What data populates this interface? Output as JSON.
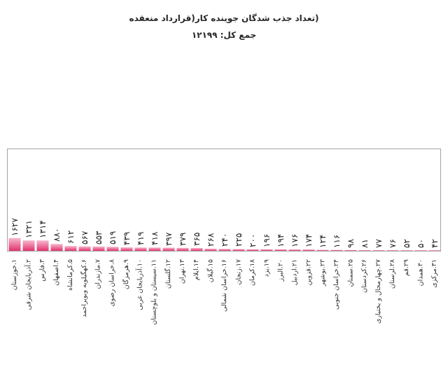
{
  "chart_data": {
    "type": "bar",
    "title": "(تعداد جذب شدگان جوینده کار(قرارداد منعقده",
    "subtitle": "جمع کل: ۱۲۱۹۹",
    "xlabel": "",
    "ylabel": "",
    "categories": [
      "۱.خوزستان",
      "۲.آذربایجان شرقی",
      "۳.فارس",
      "۴.اصفهان",
      "۵.کرمانشاه",
      "۶.کهگیلویه وبویراحمد",
      "۷.مازندران",
      "۸.خراسان رضوی",
      "۹.هرمزگان",
      "۱۰.آذربایجان غربی",
      "۱۱.سیستان و بلوچستان",
      "۱۲.گلستان",
      "۱۳.تهران",
      "۱۴.ایلام",
      "۱۵.گیلان",
      "۱۶.خراسان شمالی",
      "۱۷.زنجان",
      "۱۸.کرمان",
      "۱۹.یزد",
      "۲۰.البرز",
      "۲۱.اردبیل",
      "۲۲.قزوین",
      "۲۳.بوشهر",
      "۲۴.خراسان جنوبی",
      "۲۵.سمنان",
      "۲۶.کردستان",
      "۲۷.چهارمحال و بختیاری",
      "۲۸.لرستان",
      "۲۹.قم",
      "۳۰.همدان",
      "۳۱.مرکزی"
    ],
    "values": [
      1627,
      1321,
      1314,
      880,
      612,
      567,
      553,
      519,
      439,
      419,
      418,
      397,
      379,
      365,
      268,
      240,
      225,
      200,
      196,
      194,
      176,
      174,
      124,
      116,
      98,
      81,
      77,
      76,
      52,
      50,
      42
    ],
    "data_labels": [
      "۱۶۲۷",
      "۱۳۲۱",
      "۱۳۱۴",
      "۸۸۰",
      "۶۱۲",
      "۵۶۷",
      "۵۵۳",
      "۵۱۹",
      "۴۳۹",
      "۴۱۹",
      "۴۱۸",
      "۳۹۷",
      "۳۷۹",
      "۳۶۵",
      "۲۶۸",
      "۲۴۰",
      "۲۲۵",
      "۲۰۰",
      "۱۹۶",
      "۱۹۴",
      "۱۷۶",
      "۱۷۴",
      "۱۲۴",
      "۱۱۶",
      "۹۸",
      "۸۱",
      "۷۷",
      "۷۶",
      "۵۲",
      "۵۰",
      "۴۲"
    ],
    "ylim": [
      0,
      13000
    ],
    "grid": false,
    "legend": "none",
    "colors": {
      "bar_top": "#f7b8cf",
      "bar_bottom": "#e2336e",
      "frame": "#a3a3a3"
    }
  }
}
